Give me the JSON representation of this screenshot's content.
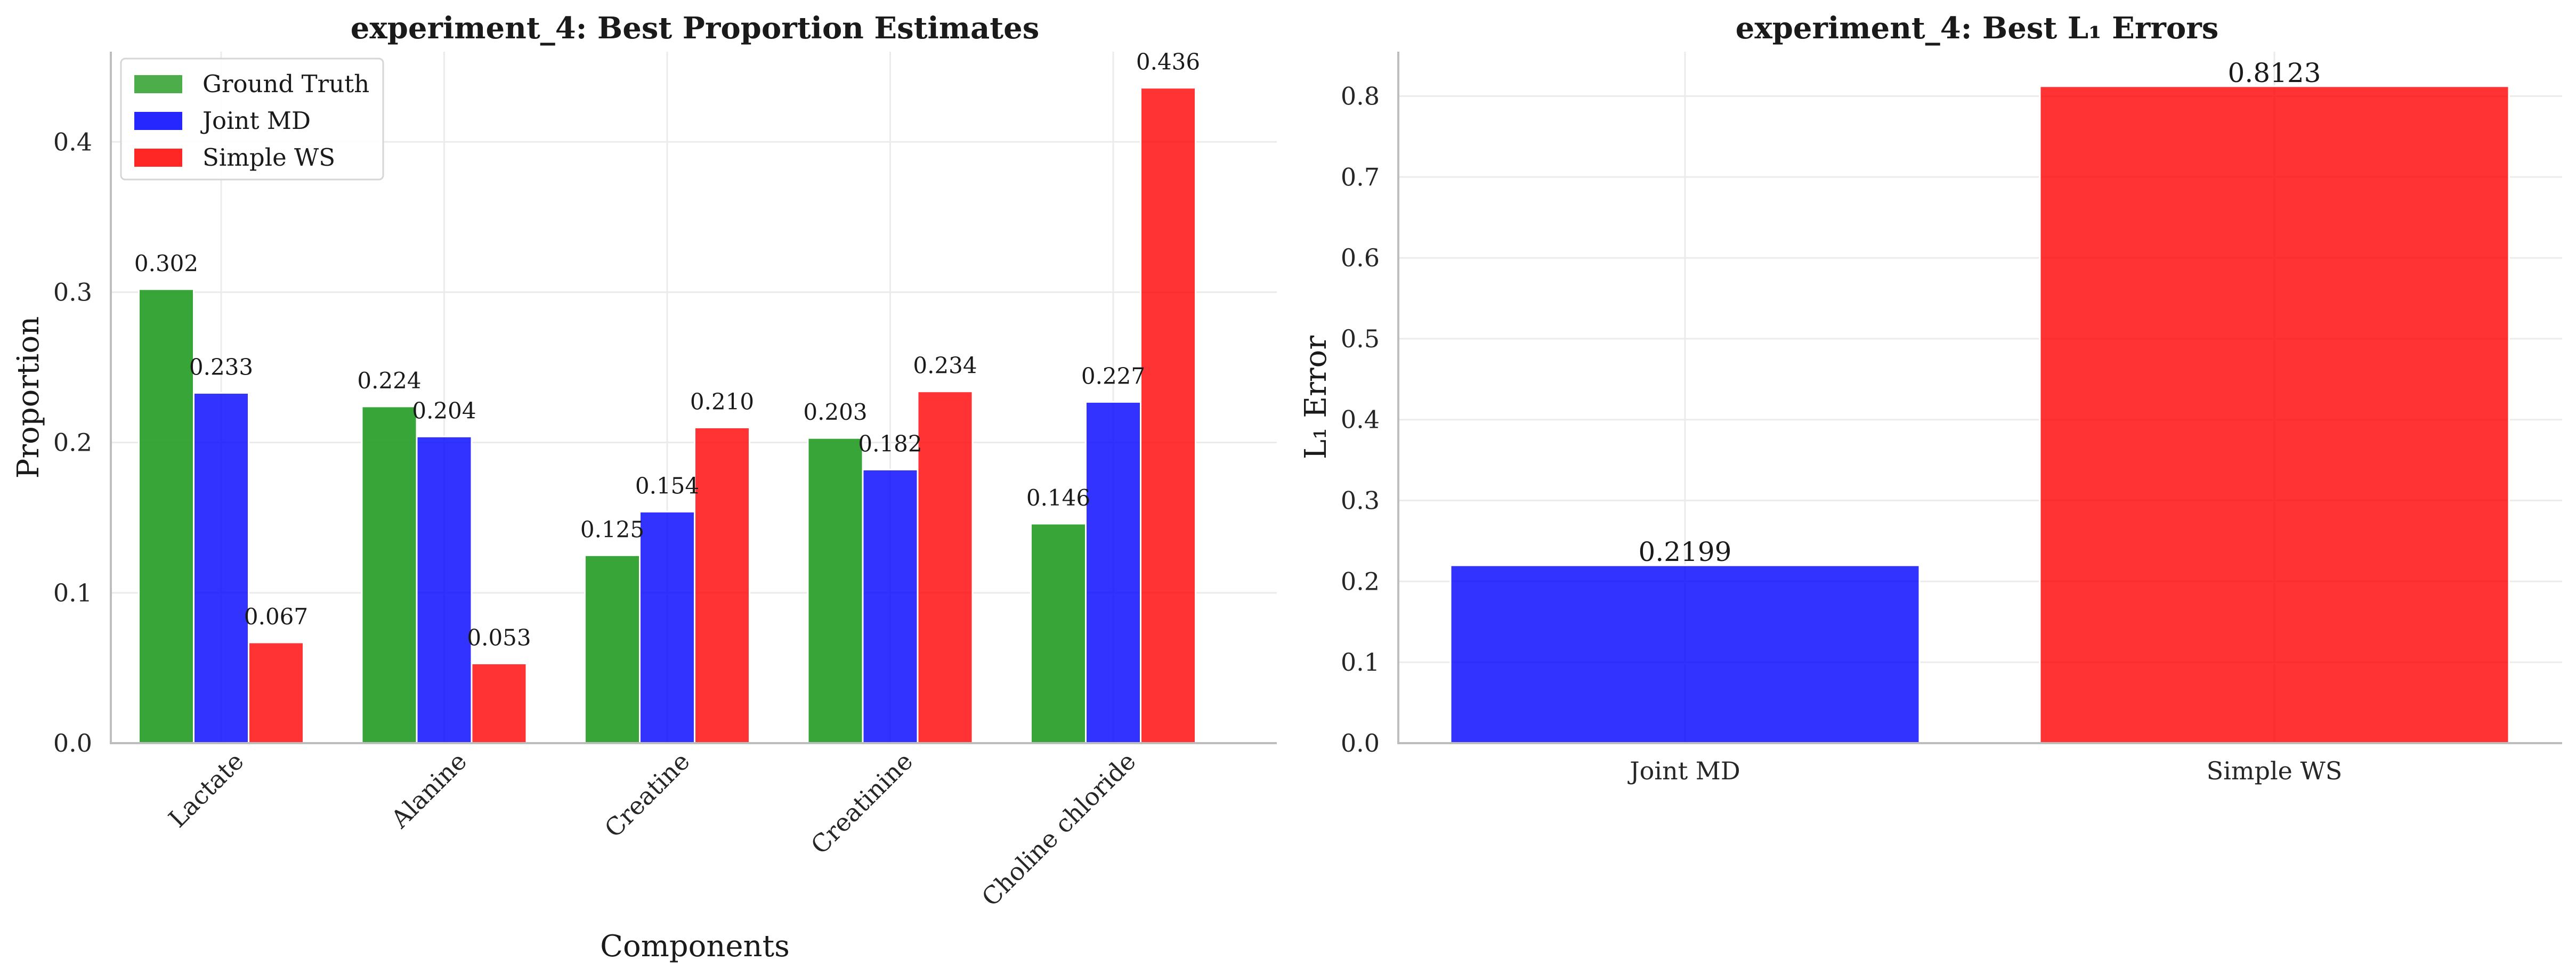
{
  "colors": {
    "ground_truth": "#2ca02c",
    "joint_md": "#0000ff",
    "simple_ws": "#ff0000"
  },
  "chart_data": [
    {
      "type": "bar",
      "title": "experiment_4: Best Proportion Estimates",
      "xlabel": "Components",
      "ylabel": "Proportion",
      "ylim": [
        0,
        0.46
      ],
      "yticks": [
        "0.0",
        "0.1",
        "0.2",
        "0.3",
        "0.4"
      ],
      "grid": true,
      "legend_position": "top-left",
      "categories": [
        "Lactate",
        "Alanine",
        "Creatine",
        "Creatinine",
        "Choline chloride"
      ],
      "series": [
        {
          "name": "Ground Truth",
          "color_key": "ground_truth",
          "values": [
            0.302,
            0.224,
            0.125,
            0.203,
            0.146
          ],
          "labels": [
            "0.302",
            "0.224",
            "0.125",
            "0.203",
            "0.146"
          ]
        },
        {
          "name": "Joint MD",
          "color_key": "joint_md",
          "values": [
            0.233,
            0.204,
            0.154,
            0.182,
            0.227
          ],
          "labels": [
            "0.233",
            "0.204",
            "0.154",
            "0.182",
            "0.227"
          ]
        },
        {
          "name": "Simple WS",
          "color_key": "simple_ws",
          "values": [
            0.067,
            0.053,
            0.21,
            0.234,
            0.436
          ],
          "labels": [
            "0.067",
            "0.053",
            "0.210",
            "0.234",
            "0.436"
          ]
        }
      ]
    },
    {
      "type": "bar",
      "title": "experiment_4: Best L₁ Errors",
      "xlabel": "",
      "ylabel": "L₁ Error",
      "ylim": [
        0,
        0.855
      ],
      "yticks": [
        "0.0",
        "0.1",
        "0.2",
        "0.3",
        "0.4",
        "0.5",
        "0.6",
        "0.7",
        "0.8"
      ],
      "grid": true,
      "categories": [
        "Joint MD",
        "Simple WS"
      ],
      "values": [
        0.2199,
        0.8123
      ],
      "labels": [
        "0.2199",
        "0.8123"
      ],
      "color_keys": [
        "joint_md",
        "simple_ws"
      ]
    }
  ]
}
